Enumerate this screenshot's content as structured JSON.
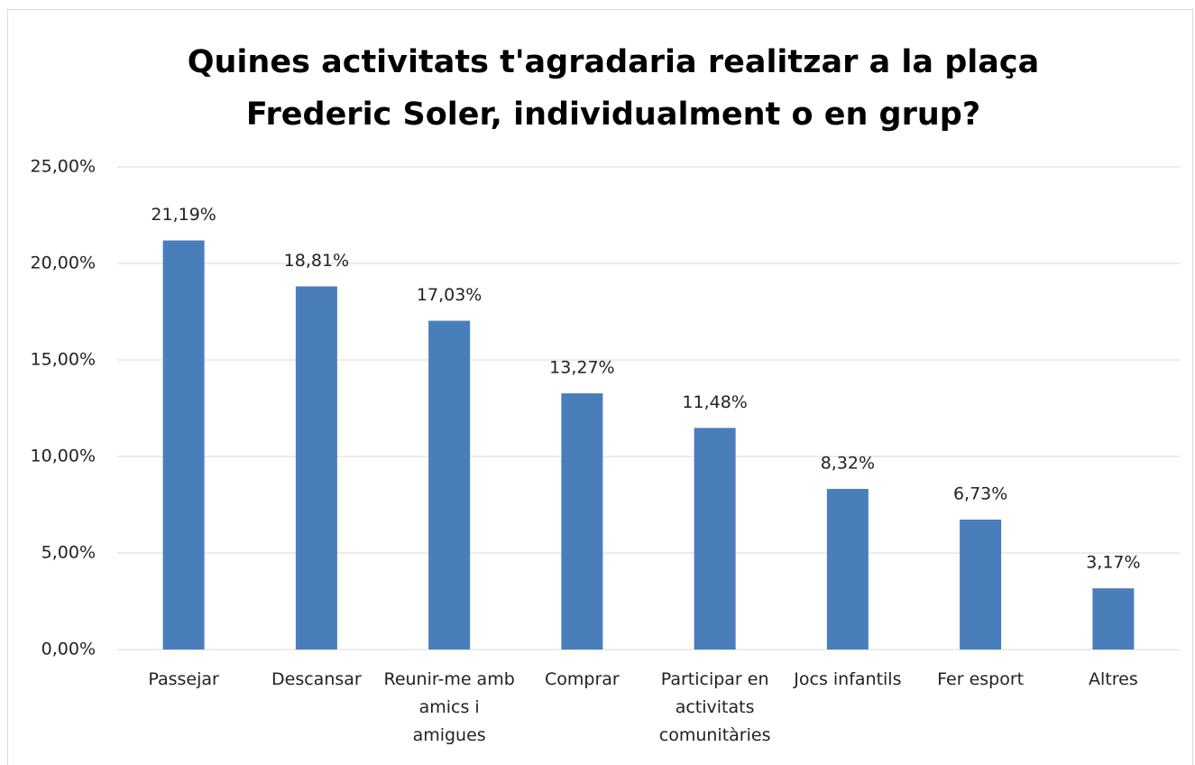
{
  "chart_data": {
    "type": "bar",
    "title": "Quines activitats t'agradaria realitzar a la plaça Frederic Soler, individualment o en grup?",
    "categories": [
      "Passejar",
      "Descansar",
      "Reunir-me amb amics i amigues",
      "Comprar",
      "Participar en activitats comunitàries",
      "Jocs infantils",
      "Fer esport",
      "Altres"
    ],
    "values": [
      21.19,
      18.81,
      17.03,
      13.27,
      11.48,
      8.32,
      6.73,
      3.17
    ],
    "value_labels": [
      "21,19%",
      "18,81%",
      "17,03%",
      "13,27%",
      "11,48%",
      "8,32%",
      "6,73%",
      "3,17%"
    ],
    "color": "#4a7ebb",
    "ylim": [
      0,
      25
    ],
    "yticks": [
      {
        "value": 0,
        "label": "0,00%"
      },
      {
        "value": 5,
        "label": "5,00%"
      },
      {
        "value": 10,
        "label": "10,00%"
      },
      {
        "value": 15,
        "label": "15,00%"
      },
      {
        "value": 20,
        "label": "20,00%"
      },
      {
        "value": 25,
        "label": "25,00%"
      }
    ],
    "grid": true
  }
}
